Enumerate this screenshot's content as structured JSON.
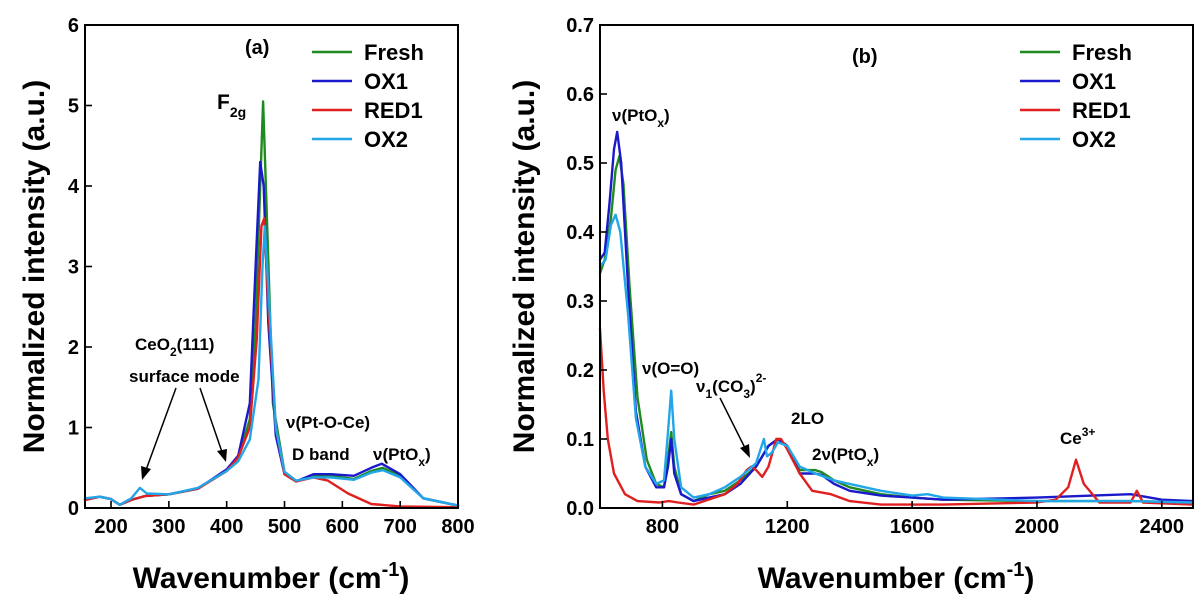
{
  "chart_data": [
    {
      "type": "line",
      "panel_label": "(a)",
      "xlabel": "Wavenumber (cm-1)",
      "xlabel_main": "Wavenumber (cm",
      "xlabel_sup": "-1",
      "xlabel_close": ")",
      "ylabel": "Normalized intensity (a.u.)",
      "xlim": [
        155,
        800
      ],
      "ylim": [
        0,
        6
      ],
      "x_ticks": [
        200,
        300,
        400,
        500,
        600,
        700,
        800
      ],
      "y_ticks": [
        0,
        1,
        2,
        3,
        4,
        5,
        6
      ],
      "grid": false,
      "legend_position": "top-right",
      "series": [
        {
          "name": "Fresh",
          "color": "#1f8a1f",
          "points": [
            [
              155,
              0.1
            ],
            [
              180,
              0.14
            ],
            [
              200,
              0.11
            ],
            [
              215,
              0.04
            ],
            [
              235,
              0.1
            ],
            [
              260,
              0.15
            ],
            [
              300,
              0.17
            ],
            [
              350,
              0.24
            ],
            [
              400,
              0.46
            ],
            [
              420,
              0.63
            ],
            [
              440,
              1.1
            ],
            [
              450,
              2.3
            ],
            [
              458,
              4.0
            ],
            [
              463,
              5.05
            ],
            [
              470,
              3.5
            ],
            [
              480,
              1.3
            ],
            [
              500,
              0.45
            ],
            [
              520,
              0.33
            ],
            [
              550,
              0.4
            ],
            [
              580,
              0.4
            ],
            [
              620,
              0.36
            ],
            [
              650,
              0.46
            ],
            [
              670,
              0.5
            ],
            [
              700,
              0.4
            ],
            [
              740,
              0.12
            ],
            [
              800,
              0.03
            ]
          ]
        },
        {
          "name": "OX1",
          "color": "#1a1acc",
          "points": [
            [
              155,
              0.1
            ],
            [
              180,
              0.14
            ],
            [
              200,
              0.11
            ],
            [
              215,
              0.04
            ],
            [
              235,
              0.1
            ],
            [
              260,
              0.15
            ],
            [
              300,
              0.17
            ],
            [
              350,
              0.24
            ],
            [
              400,
              0.48
            ],
            [
              420,
              0.65
            ],
            [
              440,
              1.3
            ],
            [
              450,
              3.0
            ],
            [
              458,
              4.3
            ],
            [
              464,
              4.0
            ],
            [
              472,
              2.3
            ],
            [
              485,
              0.9
            ],
            [
              500,
              0.42
            ],
            [
              520,
              0.33
            ],
            [
              550,
              0.42
            ],
            [
              580,
              0.42
            ],
            [
              620,
              0.4
            ],
            [
              650,
              0.5
            ],
            [
              668,
              0.55
            ],
            [
              700,
              0.42
            ],
            [
              740,
              0.12
            ],
            [
              800,
              0.03
            ]
          ]
        },
        {
          "name": "RED1",
          "color": "#e02020",
          "points": [
            [
              155,
              0.1
            ],
            [
              180,
              0.14
            ],
            [
              200,
              0.11
            ],
            [
              215,
              0.04
            ],
            [
              235,
              0.1
            ],
            [
              260,
              0.15
            ],
            [
              300,
              0.17
            ],
            [
              350,
              0.24
            ],
            [
              400,
              0.46
            ],
            [
              420,
              0.63
            ],
            [
              440,
              1.0
            ],
            [
              452,
              2.1
            ],
            [
              460,
              3.5
            ],
            [
              465,
              3.6
            ],
            [
              472,
              2.5
            ],
            [
              485,
              1.0
            ],
            [
              500,
              0.42
            ],
            [
              520,
              0.33
            ],
            [
              550,
              0.38
            ],
            [
              575,
              0.34
            ],
            [
              610,
              0.18
            ],
            [
              650,
              0.05
            ],
            [
              700,
              0.02
            ],
            [
              800,
              0.01
            ]
          ]
        },
        {
          "name": "OX2",
          "color": "#22a6e8",
          "points": [
            [
              155,
              0.12
            ],
            [
              180,
              0.14
            ],
            [
              200,
              0.11
            ],
            [
              215,
              0.04
            ],
            [
              235,
              0.12
            ],
            [
              250,
              0.25
            ],
            [
              262,
              0.18
            ],
            [
              300,
              0.17
            ],
            [
              350,
              0.25
            ],
            [
              400,
              0.46
            ],
            [
              420,
              0.58
            ],
            [
              440,
              0.85
            ],
            [
              455,
              1.6
            ],
            [
              462,
              3.0
            ],
            [
              466,
              3.5
            ],
            [
              473,
              2.6
            ],
            [
              485,
              1.0
            ],
            [
              500,
              0.45
            ],
            [
              520,
              0.34
            ],
            [
              550,
              0.38
            ],
            [
              580,
              0.38
            ],
            [
              620,
              0.35
            ],
            [
              650,
              0.44
            ],
            [
              670,
              0.47
            ],
            [
              700,
              0.38
            ],
            [
              740,
              0.12
            ],
            [
              800,
              0.03
            ]
          ]
        }
      ],
      "annotations": [
        {
          "text": "F2g",
          "main": "F",
          "sub": "2g"
        },
        {
          "text": "CeO2(111)",
          "main": "CeO",
          "sub": "2",
          "tail": "(111)"
        },
        {
          "text": "surface mode"
        },
        {
          "text": "ν(Pt-O-Ce)"
        },
        {
          "text": "D band"
        },
        {
          "text": "ν(PtOx)",
          "main": "ν(PtO",
          "sub": "x",
          "tail": ")"
        }
      ]
    },
    {
      "type": "line",
      "panel_label": "(b)",
      "xlabel": "Wavenumber (cm-1)",
      "xlabel_main": "Wavenumber (cm",
      "xlabel_sup": "-1",
      "xlabel_close": ")",
      "ylabel": "Normalized intensity (a.u.)",
      "xlim": [
        600,
        2500
      ],
      "ylim": [
        0,
        0.7
      ],
      "x_ticks": [
        800,
        1200,
        1600,
        2000,
        2400
      ],
      "y_ticks": [
        "0.0",
        "0.1",
        "0.2",
        "0.3",
        "0.4",
        "0.5",
        "0.6",
        "0.7"
      ],
      "grid": false,
      "legend_position": "top-right",
      "series": [
        {
          "name": "Fresh",
          "color": "#1f8a1f",
          "points": [
            [
              600,
              0.34
            ],
            [
              615,
              0.36
            ],
            [
              635,
              0.42
            ],
            [
              650,
              0.49
            ],
            [
              662,
              0.51
            ],
            [
              675,
              0.47
            ],
            [
              695,
              0.32
            ],
            [
              720,
              0.16
            ],
            [
              750,
              0.07
            ],
            [
              780,
              0.035
            ],
            [
              805,
              0.03
            ],
            [
              818,
              0.07
            ],
            [
              828,
              0.11
            ],
            [
              838,
              0.06
            ],
            [
              860,
              0.02
            ],
            [
              900,
              0.01
            ],
            [
              950,
              0.02
            ],
            [
              1000,
              0.025
            ],
            [
              1050,
              0.04
            ],
            [
              1100,
              0.06
            ],
            [
              1140,
              0.09
            ],
            [
              1170,
              0.1
            ],
            [
              1200,
              0.09
            ],
            [
              1240,
              0.055
            ],
            [
              1290,
              0.055
            ],
            [
              1310,
              0.052
            ],
            [
              1350,
              0.04
            ],
            [
              1400,
              0.03
            ],
            [
              1500,
              0.02
            ],
            [
              1600,
              0.015
            ],
            [
              1700,
              0.012
            ],
            [
              2000,
              0.01
            ],
            [
              2300,
              0.01
            ],
            [
              2500,
              0.008
            ]
          ]
        },
        {
          "name": "OX1",
          "color": "#1a1acc",
          "points": [
            [
              600,
              0.36
            ],
            [
              615,
              0.37
            ],
            [
              630,
              0.44
            ],
            [
              645,
              0.52
            ],
            [
              655,
              0.545
            ],
            [
              668,
              0.5
            ],
            [
              690,
              0.32
            ],
            [
              715,
              0.14
            ],
            [
              745,
              0.06
            ],
            [
              780,
              0.03
            ],
            [
              805,
              0.03
            ],
            [
              818,
              0.06
            ],
            [
              828,
              0.1
            ],
            [
              838,
              0.05
            ],
            [
              860,
              0.02
            ],
            [
              900,
              0.01
            ],
            [
              950,
              0.015
            ],
            [
              1000,
              0.02
            ],
            [
              1050,
              0.035
            ],
            [
              1100,
              0.06
            ],
            [
              1140,
              0.09
            ],
            [
              1170,
              0.1
            ],
            [
              1200,
              0.09
            ],
            [
              1240,
              0.05
            ],
            [
              1290,
              0.05
            ],
            [
              1310,
              0.048
            ],
            [
              1350,
              0.035
            ],
            [
              1400,
              0.025
            ],
            [
              1500,
              0.018
            ],
            [
              1600,
              0.015
            ],
            [
              1700,
              0.012
            ],
            [
              2000,
              0.015
            ],
            [
              2300,
              0.02
            ],
            [
              2400,
              0.012
            ],
            [
              2500,
              0.01
            ]
          ]
        },
        {
          "name": "RED1",
          "color": "#e02020",
          "points": [
            [
              600,
              0.26
            ],
            [
              612,
              0.17
            ],
            [
              625,
              0.1
            ],
            [
              645,
              0.05
            ],
            [
              680,
              0.02
            ],
            [
              720,
              0.01
            ],
            [
              790,
              0.008
            ],
            [
              820,
              0.01
            ],
            [
              850,
              0.008
            ],
            [
              900,
              0.005
            ],
            [
              1000,
              0.02
            ],
            [
              1040,
              0.035
            ],
            [
              1070,
              0.055
            ],
            [
              1085,
              0.06
            ],
            [
              1100,
              0.055
            ],
            [
              1120,
              0.045
            ],
            [
              1140,
              0.06
            ],
            [
              1165,
              0.1
            ],
            [
              1180,
              0.1
            ],
            [
              1200,
              0.085
            ],
            [
              1240,
              0.05
            ],
            [
              1280,
              0.025
            ],
            [
              1340,
              0.02
            ],
            [
              1400,
              0.01
            ],
            [
              1500,
              0.005
            ],
            [
              1700,
              0.005
            ],
            [
              2000,
              0.008
            ],
            [
              2060,
              0.012
            ],
            [
              2100,
              0.03
            ],
            [
              2125,
              0.07
            ],
            [
              2150,
              0.035
            ],
            [
              2200,
              0.008
            ],
            [
              2300,
              0.008
            ],
            [
              2320,
              0.025
            ],
            [
              2340,
              0.008
            ],
            [
              2500,
              0.005
            ]
          ]
        },
        {
          "name": "OX2",
          "color": "#22a6e8",
          "points": [
            [
              600,
              0.35
            ],
            [
              618,
              0.36
            ],
            [
              635,
              0.41
            ],
            [
              650,
              0.425
            ],
            [
              665,
              0.4
            ],
            [
              690,
              0.28
            ],
            [
              715,
              0.13
            ],
            [
              745,
              0.06
            ],
            [
              780,
              0.035
            ],
            [
              805,
              0.04
            ],
            [
              818,
              0.11
            ],
            [
              828,
              0.17
            ],
            [
              838,
              0.1
            ],
            [
              860,
              0.03
            ],
            [
              900,
              0.015
            ],
            [
              950,
              0.02
            ],
            [
              1000,
              0.03
            ],
            [
              1050,
              0.045
            ],
            [
              1100,
              0.065
            ],
            [
              1125,
              0.1
            ],
            [
              1135,
              0.075
            ],
            [
              1150,
              0.08
            ],
            [
              1170,
              0.095
            ],
            [
              1200,
              0.09
            ],
            [
              1240,
              0.06
            ],
            [
              1290,
              0.05
            ],
            [
              1350,
              0.04
            ],
            [
              1400,
              0.035
            ],
            [
              1500,
              0.025
            ],
            [
              1600,
              0.018
            ],
            [
              1650,
              0.02
            ],
            [
              1700,
              0.015
            ],
            [
              2000,
              0.01
            ],
            [
              2300,
              0.01
            ],
            [
              2500,
              0.008
            ]
          ]
        }
      ],
      "annotations": [
        {
          "text": "ν(PtOx)",
          "main": "ν(PtO",
          "sub": "x",
          "tail": ")"
        },
        {
          "text": "ν(O=O)"
        },
        {
          "text": "ν1(CO3)2-",
          "main": "ν",
          "sub1": "1",
          "mid": "(CO",
          "sub2": "3",
          "tail": ")",
          "sup": "2-"
        },
        {
          "text": "2LO"
        },
        {
          "text": "2ν(PtOx)",
          "main": "2ν(PtO",
          "sub": "x",
          "tail": ")"
        },
        {
          "text": "Ce3+",
          "main": "Ce",
          "sup": "3+"
        }
      ]
    }
  ]
}
